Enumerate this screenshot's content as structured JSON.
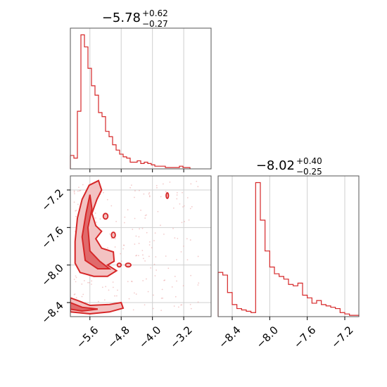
{
  "colors": {
    "series": "#d62728",
    "fill_dark": "#e06a6b",
    "fill_light": "#f3c2c2",
    "points": "#e9a0a0"
  },
  "titles": {
    "param1": {
      "value": "−5.78",
      "plus": "+0.62",
      "minus": "−0.27"
    },
    "param2": {
      "value": "−8.02",
      "plus": "+0.40",
      "minus": "−0.25"
    }
  },
  "chart_data": [
    {
      "type": "histogram",
      "panel": "marginal-param1",
      "grid": true,
      "xlim": [
        -6.1,
        -2.5
      ],
      "bin_edges": [
        -6.1,
        -6.01,
        -5.92,
        -5.83,
        -5.74,
        -5.65,
        -5.56,
        -5.47,
        -5.38,
        -5.29,
        -5.2,
        -5.11,
        -5.02,
        -4.93,
        -4.84,
        -4.75,
        -4.66,
        -4.57,
        -4.48,
        -4.39,
        -4.3,
        -4.21,
        -4.12,
        -4.03,
        -3.94,
        -3.85,
        -3.76,
        -3.67,
        -3.58,
        -3.49,
        -3.4,
        -3.31,
        -3.22,
        -3.13,
        -3.04
      ],
      "counts": [
        10,
        8,
        43,
        100,
        91,
        75,
        62,
        55,
        42,
        39,
        28,
        24,
        18,
        14,
        11,
        9,
        8,
        5,
        5,
        6,
        4,
        5,
        4,
        3,
        2,
        2,
        2,
        1,
        1,
        1,
        1,
        2,
        1,
        1
      ],
      "ylim": [
        0,
        105
      ],
      "xticks": []
    },
    {
      "type": "contour",
      "panel": "joint-param1-param2",
      "grid": true,
      "xlim": [
        -6.1,
        -2.5
      ],
      "ylim": [
        -8.55,
        -7.05
      ],
      "xticks": [
        -5.6,
        -4.8,
        -4.0,
        -3.2
      ],
      "xtick_labels": [
        "−5.6",
        "−4.8",
        "−4.0",
        "−3.2"
      ],
      "yticks": [
        -7.2,
        -7.6,
        -8.0,
        -8.4
      ],
      "ytick_labels": [
        "−7.2",
        "−7.6",
        "−8.0",
        "−8.4"
      ]
    },
    {
      "type": "histogram",
      "panel": "marginal-param2",
      "grid": true,
      "xlim": [
        -8.55,
        -7.05
      ],
      "bin_edges": [
        -8.55,
        -8.5,
        -8.45,
        -8.4,
        -8.35,
        -8.3,
        -8.25,
        -8.2,
        -8.15,
        -8.1,
        -8.05,
        -8.0,
        -7.95,
        -7.9,
        -7.85,
        -7.8,
        -7.75,
        -7.7,
        -7.65,
        -7.6,
        -7.55,
        -7.5,
        -7.45,
        -7.4,
        -7.35,
        -7.3,
        -7.25,
        -7.2,
        -7.15,
        -7.1,
        -7.05
      ],
      "counts": [
        33,
        31,
        18,
        9,
        6,
        5,
        4,
        3,
        100,
        72,
        49,
        37,
        32,
        30,
        28,
        24,
        23,
        25,
        16,
        14,
        10,
        12,
        9,
        8,
        7,
        6,
        3,
        2,
        1,
        1
      ],
      "ylim": [
        0,
        105
      ],
      "xticks": [
        -8.4,
        -8.0,
        -7.6,
        -7.2
      ],
      "xtick_labels": [
        "−8.4",
        "−8.0",
        "−7.6",
        "−7.2"
      ]
    }
  ]
}
